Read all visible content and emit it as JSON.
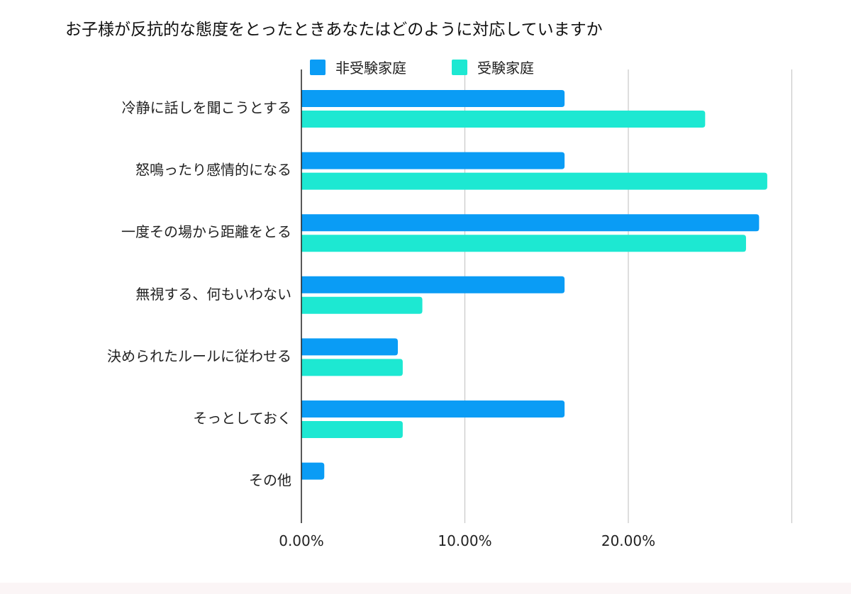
{
  "chart_data": {
    "type": "bar",
    "orientation": "horizontal",
    "title": "お子様が反抗的な態度をとったときあなたはどのように対応していますか",
    "categories": [
      "冷静に話しを聞こうとする",
      "怒鳴ったり感情的になる",
      "一度その場から距離をとる",
      "無視する、何もいわない",
      "決められたルールに従わせる",
      "そっとしておく",
      "その他"
    ],
    "series": [
      {
        "name": "非受験家庭",
        "color": "#0a9cf5",
        "values": [
          16.1,
          16.1,
          28.0,
          16.1,
          5.9,
          16.1,
          1.4
        ]
      },
      {
        "name": "受験家庭",
        "color": "#1de8d2",
        "values": [
          24.7,
          28.5,
          27.2,
          7.4,
          6.2,
          6.2,
          0
        ]
      }
    ],
    "xlim": [
      0,
      30
    ],
    "xticks": [
      0,
      10,
      20,
      30
    ],
    "xtick_labels": [
      "0.00%",
      "10.00%",
      "20.00%",
      ""
    ],
    "grid": true,
    "legend_position": "top"
  }
}
